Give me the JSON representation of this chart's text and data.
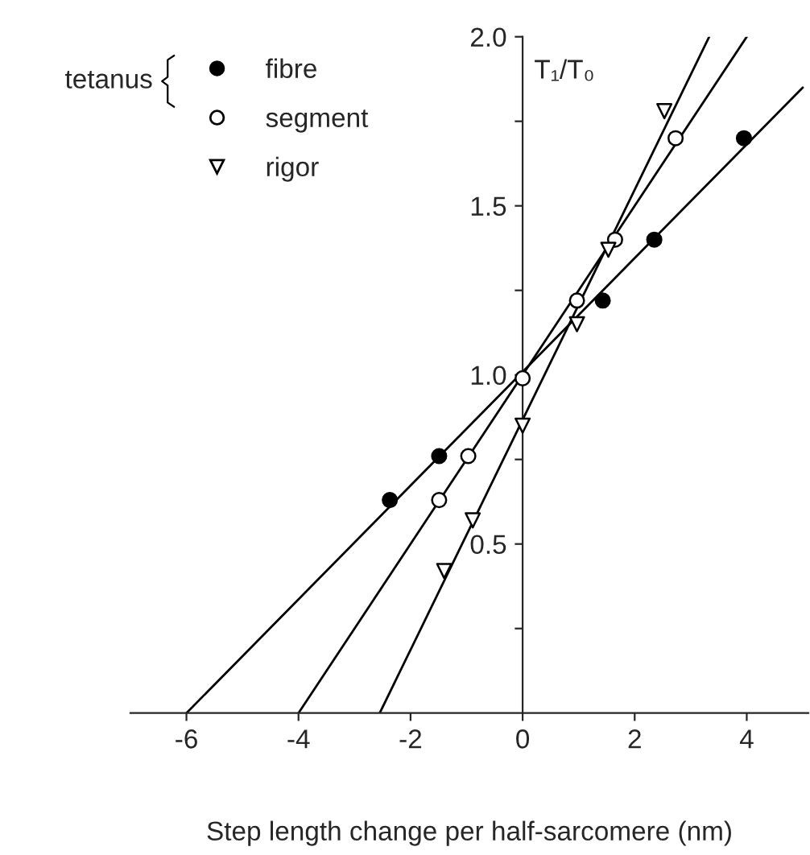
{
  "chart_data": {
    "type": "scatter",
    "xlabel": "Step length change per half-sarcomere (nm)",
    "ylabel": "T₁/T₀",
    "annotations": [
      "tetanus"
    ],
    "xlim": [
      -7,
      5.1
    ],
    "xticks": [
      -6,
      -4,
      -2,
      0,
      2,
      4
    ],
    "ylim": [
      0,
      2.0
    ],
    "yticks": [
      {
        "value": 0.25,
        "label": null
      },
      {
        "value": 0.5,
        "label": "0.5"
      },
      {
        "value": 0.75,
        "label": null
      },
      {
        "value": 1.0,
        "label": "1.0"
      },
      {
        "value": 1.25,
        "label": null
      },
      {
        "value": 1.5,
        "label": "1.5"
      },
      {
        "value": 1.75,
        "label": null
      },
      {
        "value": 2.0,
        "label": "2.0"
      }
    ],
    "grid": false,
    "legend": "top left",
    "series": [
      {
        "name": "fibre",
        "color": "#000000",
        "marker": "circle",
        "x": [
          -2.37,
          -1.49,
          1.43,
          2.35,
          3.95
        ],
        "values": [
          0.63,
          0.76,
          1.22,
          1.4,
          1.7
        ]
      },
      {
        "name": "segment",
        "color": "#ffffff",
        "marker": "circle",
        "x": [
          -1.49,
          -0.97,
          0,
          0.97,
          1.65,
          2.73
        ],
        "values": [
          0.63,
          0.76,
          0.99,
          1.22,
          1.4,
          1.7
        ]
      },
      {
        "name": "rigor",
        "color": "#ffffff",
        "marker": "triangle",
        "x": [
          -1.4,
          -0.89,
          0,
          0.97,
          1.53,
          2.53
        ],
        "values": [
          0.42,
          0.57,
          0.85,
          1.15,
          1.37,
          1.78
        ]
      },
      {
        "type": "line",
        "color": "#000000",
        "x": [
          -6,
          5
        ],
        "values": [
          0,
          1.85
        ]
      },
      {
        "type": "line",
        "color": "#000000",
        "x": [
          -4,
          4
        ],
        "values": [
          0,
          2.0
        ]
      },
      {
        "type": "line",
        "color": "#000000",
        "x": [
          -2.55,
          3.33
        ],
        "values": [
          0,
          2.0
        ]
      }
    ]
  }
}
